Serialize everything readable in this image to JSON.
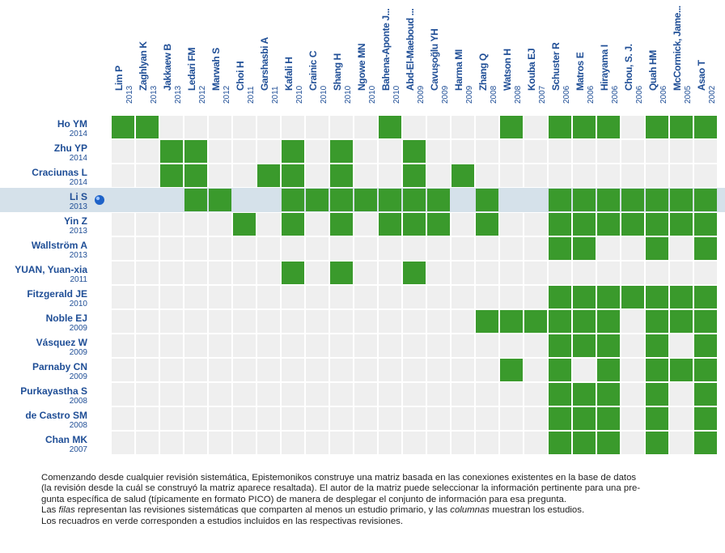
{
  "chart_data": {
    "type": "heatmap",
    "columns": [
      {
        "author": "Lim P",
        "year": "2013"
      },
      {
        "author": "Zaghlyan K",
        "year": "2013"
      },
      {
        "author": "Jakkaew B",
        "year": "2013"
      },
      {
        "author": "Ledari FM",
        "year": "2012"
      },
      {
        "author": "Marwah S",
        "year": "2012"
      },
      {
        "author": "Choi H",
        "year": "2011"
      },
      {
        "author": "Garshasbi A",
        "year": "2011"
      },
      {
        "author": "Kafali H",
        "year": "2010"
      },
      {
        "author": "Crainic C",
        "year": "2010"
      },
      {
        "author": "Shang H",
        "year": "2010"
      },
      {
        "author": "Ngowe MN",
        "year": "2010"
      },
      {
        "author": "Bahena-Aponte J...",
        "year": "2010"
      },
      {
        "author": "Abd-El-Maeboud ...",
        "year": "2009"
      },
      {
        "author": "Cavuşoğlu YH",
        "year": "2009"
      },
      {
        "author": "Harma MI",
        "year": "2009"
      },
      {
        "author": "Zhang Q",
        "year": "2008"
      },
      {
        "author": "Watson H",
        "year": "2008"
      },
      {
        "author": "Kouba EJ",
        "year": "2007"
      },
      {
        "author": "Schuster R",
        "year": "2006"
      },
      {
        "author": "Matros E",
        "year": "2006"
      },
      {
        "author": "Hirayama I",
        "year": "2006"
      },
      {
        "author": "Chou, S. J.",
        "year": "2006"
      },
      {
        "author": "Quah HM",
        "year": "2006"
      },
      {
        "author": "McCormick, Jame...",
        "year": "2005"
      },
      {
        "author": "Asao T",
        "year": "2002"
      }
    ],
    "rows": [
      {
        "author": "Ho YM",
        "year": "2014",
        "included": [
          0,
          1,
          11,
          16,
          18,
          19,
          20,
          22,
          23,
          24
        ]
      },
      {
        "author": "Zhu YP",
        "year": "2014",
        "included": [
          2,
          3,
          7,
          9,
          12
        ]
      },
      {
        "author": "Craciunas L",
        "year": "2014",
        "included": [
          2,
          3,
          6,
          7,
          9,
          12,
          14
        ]
      },
      {
        "author": "Li S",
        "year": "2013",
        "highlighted": true,
        "included": [
          3,
          4,
          7,
          8,
          9,
          10,
          11,
          12,
          13,
          15,
          18,
          19,
          20,
          21,
          22,
          23,
          24
        ]
      },
      {
        "author": "Yin Z",
        "year": "2013",
        "included": [
          5,
          7,
          9,
          11,
          12,
          13,
          15,
          18,
          19,
          20,
          21,
          22,
          23,
          24
        ]
      },
      {
        "author": "Wallström A",
        "year": "2013",
        "included": [
          18,
          19,
          22,
          24
        ]
      },
      {
        "author": "YUAN, Yuan-xia",
        "year": "2011",
        "included": [
          7,
          9,
          12
        ]
      },
      {
        "author": "Fitzgerald JE",
        "year": "2010",
        "included": [
          18,
          19,
          20,
          21,
          22,
          23,
          24
        ]
      },
      {
        "author": "Noble EJ",
        "year": "2009",
        "included": [
          15,
          16,
          17,
          18,
          19,
          20,
          22,
          23,
          24
        ]
      },
      {
        "author": "Vásquez W",
        "year": "2009",
        "included": [
          18,
          19,
          20,
          22,
          24
        ]
      },
      {
        "author": "Parnaby CN",
        "year": "2009",
        "included": [
          16,
          18,
          20,
          22,
          23,
          24
        ]
      },
      {
        "author": "Purkayastha S",
        "year": "2008",
        "included": [
          18,
          19,
          20,
          22,
          24
        ]
      },
      {
        "author": "de Castro SM",
        "year": "2008",
        "included": [
          18,
          19,
          20,
          22,
          24
        ]
      },
      {
        "author": "Chan MK",
        "year": "2007",
        "included": [
          18,
          19,
          20,
          22,
          24
        ]
      }
    ],
    "colors": {
      "included": "#3a9a2c",
      "empty": "#efefef",
      "highlight_row": "#d5e1ea",
      "text": "#1f4e96",
      "marker": "#1e62c8"
    }
  },
  "caption": {
    "line1": "Comenzando desde cualquier revisión sistemática, Epistemonikos construye una matriz basada en las conexiones existentes en la base de datos",
    "line2": "(la revisión desde la cuál se construyó la matriz aparece resaltada).  El autor de la matriz puede seleccionar la información pertinente para una pre-",
    "line3": "gunta específica de salud (típicamente en formato PICO) de manera de desplegar el conjunto de información para esa pregunta.",
    "line4_a": "Las ",
    "line4_b": "filas",
    "line4_c": " representan las revisiones sistemáticas que comparten al menos un estudio primario, y las ",
    "line4_d": "columnas",
    "line4_e": " muestran los estudios.",
    "line5": "Los recuadros en verde corresponden a estudios incluidos en las respectivas revisiones."
  }
}
